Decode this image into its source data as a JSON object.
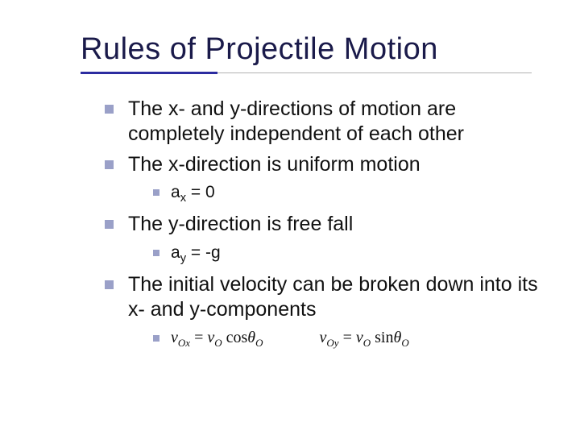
{
  "title": "Rules of Projectile Motion",
  "colors": {
    "title_color": "#1a1a4a",
    "underline_primary": "#2c2ca0",
    "underline_secondary": "#b0b0b0",
    "bullet_color": "#9aa0c8",
    "text_color": "#111111",
    "background": "#ffffff"
  },
  "bullets": {
    "b1": "The x- and y-directions of motion are completely independent of each other",
    "b2": "The x-direction is uniform motion",
    "b2_1_prefix": "a",
    "b2_1_sub": "x",
    "b2_1_suffix": " = 0",
    "b3": "The y-direction is free fall",
    "b3_1_prefix": "a",
    "b3_1_sub": "y",
    "b3_1_suffix": " = -g",
    "b4": "The initial velocity can be broken down into its x- and y-components"
  },
  "formulas": {
    "f1": {
      "v": "v",
      "sub1": "Ox",
      "eq": " = ",
      "v2": "v",
      "sub2": "O",
      "fn": " cos",
      "theta": "θ",
      "sub3": "O"
    },
    "f2": {
      "v": "v",
      "sub1": "Oy",
      "eq": " = ",
      "v2": "v",
      "sub2": "O",
      "fn": " sin",
      "theta": "θ",
      "sub3": "O"
    }
  }
}
